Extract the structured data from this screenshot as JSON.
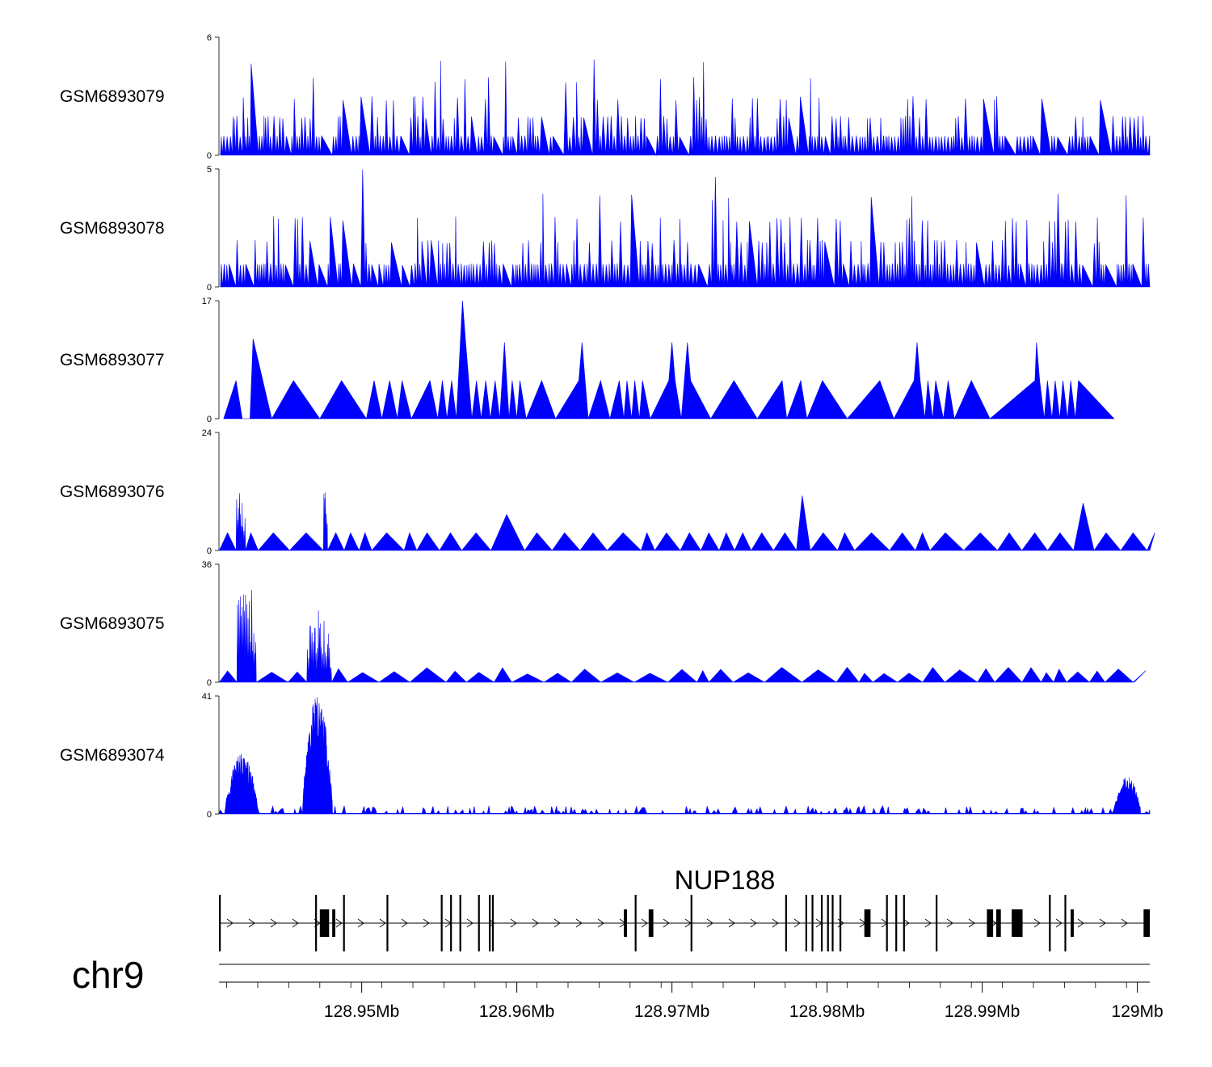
{
  "chart_data": {
    "type": "area",
    "genome": {
      "chromosome": "chr9",
      "x_range_mb": [
        128.9408,
        129.0008
      ]
    },
    "tracks": [
      {
        "sample": "GSM6893079",
        "ymax": 6,
        "ymin": 0,
        "color": "#0000ff",
        "seed": 11,
        "density": 300,
        "base_peaks": [],
        "shape": "spiky",
        "extent_mb": 129.0008
      },
      {
        "sample": "GSM6893078",
        "ymax": 5,
        "ymin": 0,
        "color": "#0000ff",
        "seed": 23,
        "density": 330,
        "base_peaks": [],
        "shape": "spiky",
        "extent_mb": 129.0008
      },
      {
        "sample": "GSM6893077",
        "ymax": 17,
        "ymin": 0,
        "color": "#0000ff",
        "seed": 37,
        "density": 0,
        "shape": "triangles",
        "points": [
          [
            128.9411,
            0
          ],
          [
            128.9419,
            5.5
          ],
          [
            128.9423,
            0
          ],
          [
            128.9428,
            0
          ],
          [
            128.943,
            11.5
          ],
          [
            128.9442,
            0
          ],
          [
            128.9456,
            5.5
          ],
          [
            128.9473,
            0
          ],
          [
            128.9487,
            5.5
          ],
          [
            128.9503,
            0
          ],
          [
            128.9508,
            5.5
          ],
          [
            128.9513,
            0
          ],
          [
            128.9518,
            5.5
          ],
          [
            128.9523,
            0
          ],
          [
            128.9526,
            5.5
          ],
          [
            128.9532,
            0
          ],
          [
            128.9544,
            5.5
          ],
          [
            128.9549,
            0
          ],
          [
            128.9552,
            5.5
          ],
          [
            128.9555,
            0
          ],
          [
            128.9558,
            5.5
          ],
          [
            128.9561,
            0
          ],
          [
            128.9565,
            17
          ],
          [
            128.9567,
            11
          ],
          [
            128.9571,
            0
          ],
          [
            128.9574,
            5.5
          ],
          [
            128.9577,
            0
          ],
          [
            128.958,
            5.5
          ],
          [
            128.9583,
            0
          ],
          [
            128.9586,
            5.5
          ],
          [
            128.9589,
            0
          ],
          [
            128.9592,
            11
          ],
          [
            128.9595,
            0
          ],
          [
            128.9597,
            5.5
          ],
          [
            128.96,
            0
          ],
          [
            128.9602,
            5.5
          ],
          [
            128.9606,
            0
          ],
          [
            128.9616,
            5.5
          ],
          [
            128.9625,
            0
          ],
          [
            128.964,
            5.5
          ],
          [
            128.9642,
            11
          ],
          [
            128.9646,
            0
          ],
          [
            128.9654,
            5.5
          ],
          [
            128.966,
            0
          ],
          [
            128.9666,
            5.5
          ],
          [
            128.9669,
            0
          ],
          [
            128.9671,
            5.5
          ],
          [
            128.9674,
            0
          ],
          [
            128.9676,
            5.5
          ],
          [
            128.9679,
            0
          ],
          [
            128.9681,
            5.5
          ],
          [
            128.9686,
            0
          ],
          [
            128.9698,
            5.5
          ],
          [
            128.97,
            11
          ],
          [
            128.9702,
            5.5
          ],
          [
            128.9706,
            0
          ],
          [
            128.971,
            11
          ],
          [
            128.9712,
            5.5
          ],
          [
            128.9725,
            0
          ],
          [
            128.974,
            5.5
          ],
          [
            128.9755,
            0
          ],
          [
            128.9771,
            5.5
          ],
          [
            128.9774,
            0
          ],
          [
            128.9783,
            5.5
          ],
          [
            128.9787,
            0
          ],
          [
            128.9797,
            5.5
          ],
          [
            128.9813,
            0
          ],
          [
            128.9834,
            5.5
          ],
          [
            128.9843,
            0
          ],
          [
            128.9856,
            5.5
          ],
          [
            128.9858,
            11
          ],
          [
            128.986,
            5.5
          ],
          [
            128.9863,
            0
          ],
          [
            128.9865,
            5.5
          ],
          [
            128.9868,
            0
          ],
          [
            128.987,
            5.5
          ],
          [
            128.9875,
            0
          ],
          [
            128.9878,
            5.5
          ],
          [
            128.9882,
            0
          ],
          [
            128.9893,
            5.5
          ],
          [
            128.9905,
            0
          ],
          [
            128.9934,
            5.5
          ],
          [
            128.9935,
            11
          ],
          [
            128.9937,
            5.5
          ],
          [
            128.994,
            0
          ],
          [
            128.9942,
            5.5
          ],
          [
            128.9945,
            0
          ],
          [
            128.9947,
            5.5
          ],
          [
            128.995,
            0
          ],
          [
            128.9952,
            5.5
          ],
          [
            128.9955,
            0
          ],
          [
            128.9957,
            5.5
          ],
          [
            128.996,
            0
          ],
          [
            128.9962,
            5.5
          ],
          [
            128.9985,
            0
          ]
        ]
      },
      {
        "sample": "GSM6893076",
        "ymax": 24,
        "ymin": 0,
        "color": "#0000ff",
        "seed": 53,
        "density": 0,
        "shape": "mixed",
        "extent_mb": 129.0008
      },
      {
        "sample": "GSM6893075",
        "ymax": 36,
        "ymin": 0,
        "color": "#0000ff",
        "seed": 71,
        "density": 0,
        "shape": "mixed",
        "extent_mb": 128.9998
      },
      {
        "sample": "GSM6893074",
        "ymax": 41,
        "ymin": 0,
        "color": "#0000ff",
        "seed": 97,
        "density": 0,
        "shape": "smooth",
        "extent_mb": 129.0008
      }
    ],
    "gene": {
      "name": "NUP188",
      "strand": "+",
      "start_mb": 128.9408,
      "end_mb": 129.0008,
      "exons_mb": [
        [
          128.9408,
          128.9409
        ],
        [
          128.947,
          128.9471
        ],
        [
          128.9473,
          128.9479
        ],
        [
          128.9481,
          128.9483
        ],
        [
          128.9488,
          128.9489
        ],
        [
          128.9516,
          128.9517
        ],
        [
          128.9551,
          128.9552
        ],
        [
          128.9557,
          128.9558
        ],
        [
          128.9563,
          128.9564
        ],
        [
          128.9575,
          128.9576
        ],
        [
          128.9582,
          128.9583
        ],
        [
          128.9584,
          128.9585
        ],
        [
          128.9669,
          128.9671
        ],
        [
          128.9676,
          128.9677
        ],
        [
          128.9685,
          128.9688
        ],
        [
          128.9712,
          128.9713
        ],
        [
          128.9773,
          128.9774
        ],
        [
          128.9786,
          128.9787
        ],
        [
          128.979,
          128.9791
        ],
        [
          128.9796,
          128.9797
        ],
        [
          128.98,
          128.9801
        ],
        [
          128.9803,
          128.9804
        ],
        [
          128.9808,
          128.9809
        ],
        [
          128.9824,
          128.9828
        ],
        [
          128.9838,
          128.9839
        ],
        [
          128.9844,
          128.9845
        ],
        [
          128.9849,
          128.985
        ],
        [
          128.987,
          128.9871
        ],
        [
          128.9903,
          128.9907
        ],
        [
          128.9909,
          128.9912
        ],
        [
          128.9919,
          128.9926
        ],
        [
          128.9943,
          128.9944
        ],
        [
          128.9953,
          128.9954
        ],
        [
          128.9957,
          128.9959
        ],
        [
          129.0004,
          129.0008
        ]
      ]
    },
    "axis": {
      "ticks_mb": [
        128.95,
        128.96,
        128.97,
        128.98,
        128.99,
        129.0
      ],
      "tick_labels": [
        "128.95Mb",
        "128.96Mb",
        "128.97Mb",
        "128.98Mb",
        "128.99Mb",
        "129Mb"
      ],
      "minor_ticks_mb": [
        128.9413,
        128.9433,
        128.9453,
        128.9473,
        128.9493,
        128.9513,
        128.9533,
        128.9553,
        128.9573,
        128.9593,
        128.9613,
        128.9633,
        128.9653,
        128.9673,
        128.9693,
        128.9713,
        128.9733,
        128.9753,
        128.9773,
        128.9793,
        128.9813,
        128.9833,
        128.9853,
        128.9873,
        128.9893,
        128.9913,
        128.9933,
        128.9953,
        128.9973,
        128.9993
      ]
    }
  }
}
